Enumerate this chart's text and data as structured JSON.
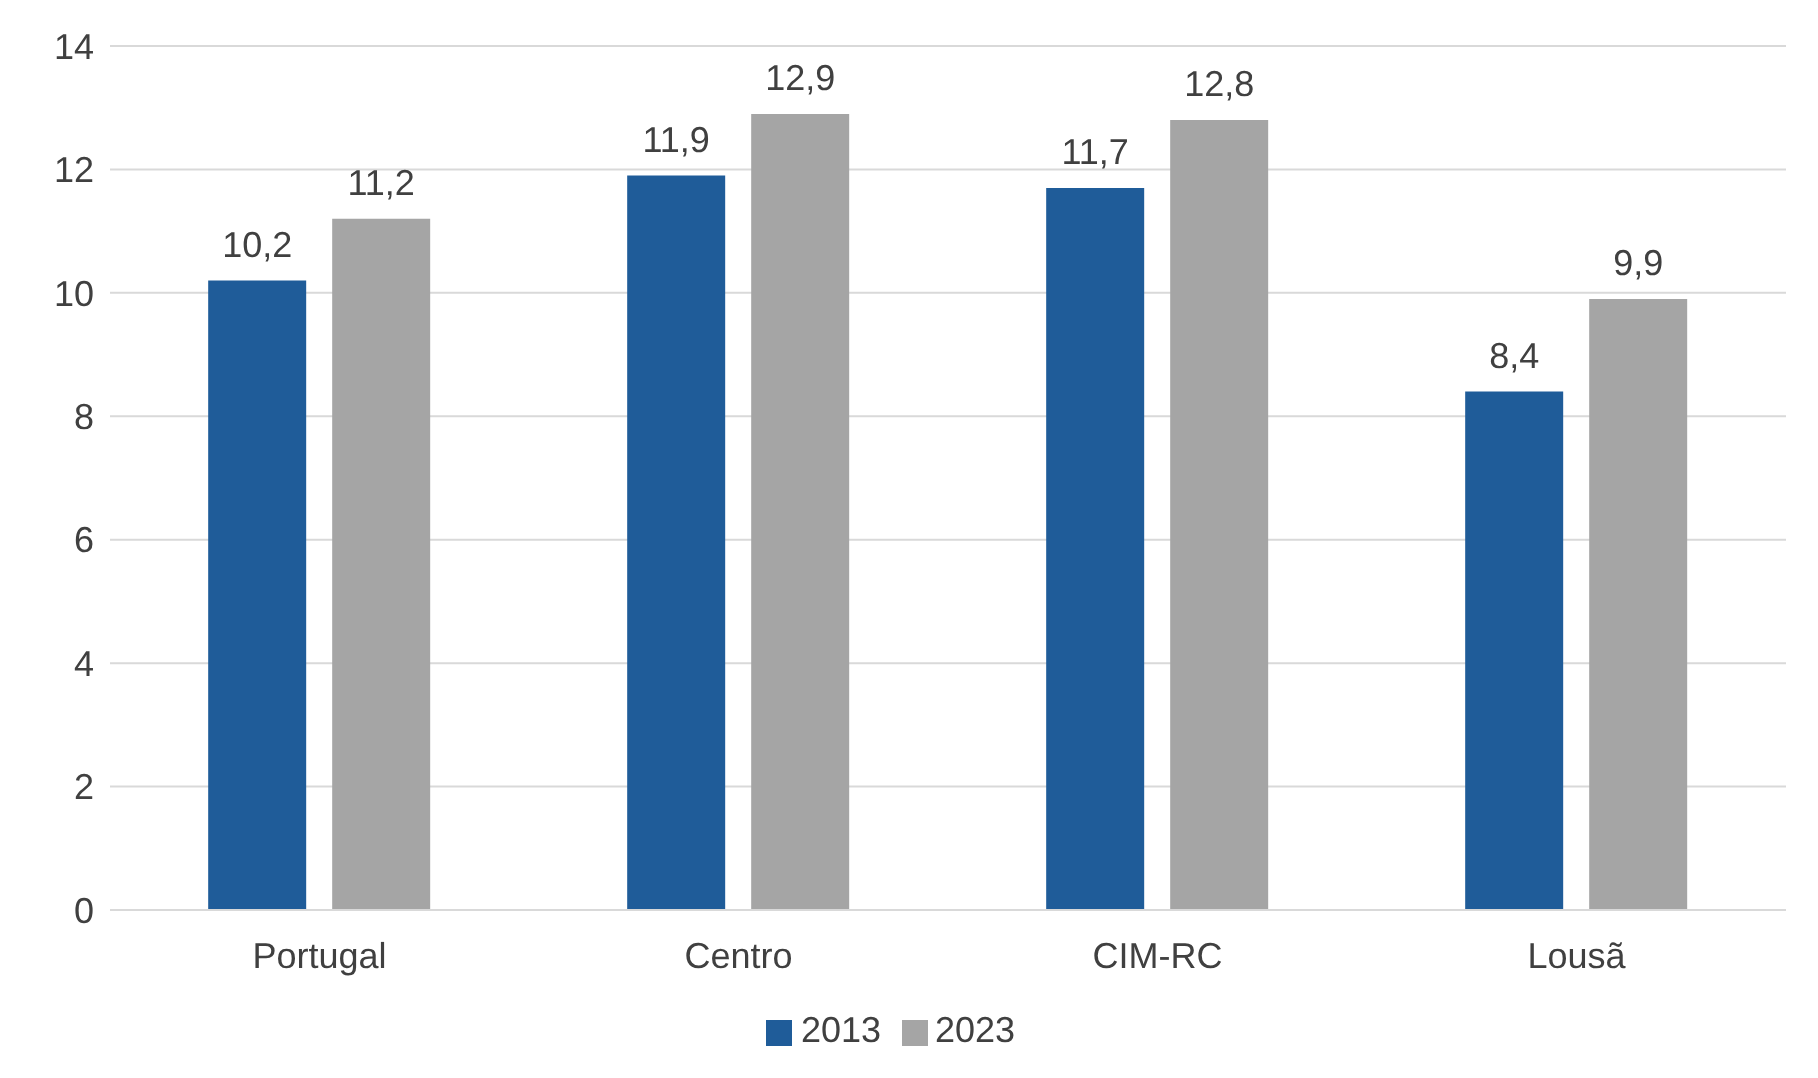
{
  "chart_data": {
    "type": "bar",
    "categories": [
      "Portugal",
      "Centro",
      "CIM-RC",
      "Lousã"
    ],
    "series": [
      {
        "name": "2013",
        "color": "#1f5c99",
        "values": [
          10.2,
          11.9,
          11.7,
          8.4
        ],
        "value_labels": [
          "10,2",
          "11,9",
          "11,7",
          "8,4"
        ]
      },
      {
        "name": "2023",
        "color": "#a5a5a5",
        "values": [
          11.2,
          12.9,
          12.8,
          9.9
        ],
        "value_labels": [
          "11,2",
          "12,9",
          "12,8",
          "9,9"
        ]
      }
    ],
    "ylim": [
      0,
      14
    ],
    "yticks": [
      0,
      2,
      4,
      6,
      8,
      10,
      12,
      14
    ],
    "grid": "y",
    "legend": "bottom"
  }
}
